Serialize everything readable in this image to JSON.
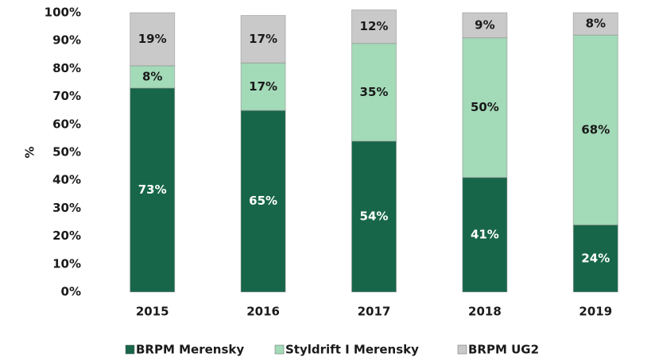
{
  "chart_data": {
    "type": "stacked_bar",
    "y_label": "%",
    "categories": [
      "2015",
      "2016",
      "2017",
      "2018",
      "2019"
    ],
    "series": [
      {
        "name": "BRPM Merensky",
        "color": "#17664a",
        "label_color": "#ffffff",
        "values": [
          73,
          65,
          54,
          41,
          24
        ],
        "value_labels": [
          "73%",
          "65%",
          "54%",
          "41%",
          "24%"
        ]
      },
      {
        "name": "Styldrift I Merensky",
        "color": "#a3dab8",
        "label_color": "#1a1a1a",
        "values": [
          8,
          17,
          35,
          50,
          68
        ],
        "value_labels": [
          "8%",
          "17%",
          "35%",
          "50%",
          "68%"
        ]
      },
      {
        "name": "BRPM UG2",
        "color": "#c9c9c9",
        "label_color": "#1a1a1a",
        "values": [
          19,
          17,
          12,
          9,
          8
        ],
        "value_labels": [
          "19%",
          "17%",
          "12%",
          "9%",
          "8%"
        ]
      }
    ],
    "ylim": [
      0,
      100
    ],
    "yticks": [
      {
        "value": 0,
        "label": "0%"
      },
      {
        "value": 10,
        "label": "10%"
      },
      {
        "value": 20,
        "label": "20%"
      },
      {
        "value": 30,
        "label": "30%"
      },
      {
        "value": 40,
        "label": "40%"
      },
      {
        "value": 50,
        "label": "50%"
      },
      {
        "value": 60,
        "label": "60%"
      },
      {
        "value": 70,
        "label": "70%"
      },
      {
        "value": 80,
        "label": "80%"
      },
      {
        "value": 90,
        "label": "90%"
      },
      {
        "value": 100,
        "label": "100%"
      }
    ],
    "legend": "bottom"
  }
}
